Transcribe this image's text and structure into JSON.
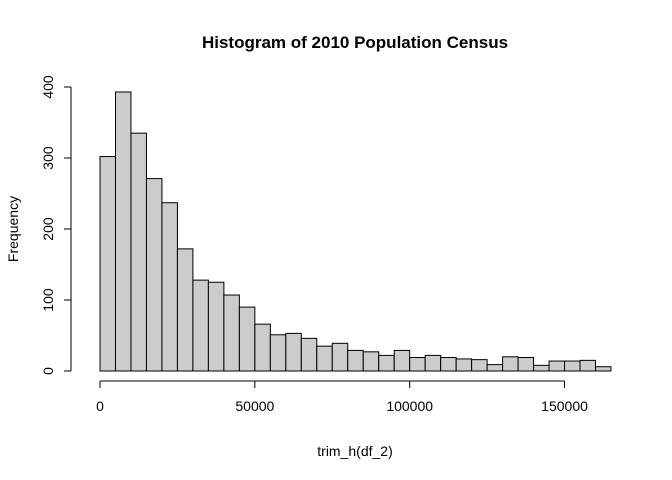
{
  "chart_data": {
    "type": "bar",
    "title": "Histogram of 2010 Population Census",
    "xlabel": "trim_h(df_2)",
    "ylabel": "Frequency",
    "bin_width": 5000,
    "bins": [
      {
        "start": 0,
        "end": 5000,
        "count": 302
      },
      {
        "start": 5000,
        "end": 10000,
        "count": 393
      },
      {
        "start": 10000,
        "end": 15000,
        "count": 335
      },
      {
        "start": 15000,
        "end": 20000,
        "count": 271
      },
      {
        "start": 20000,
        "end": 25000,
        "count": 237
      },
      {
        "start": 25000,
        "end": 30000,
        "count": 172
      },
      {
        "start": 30000,
        "end": 35000,
        "count": 128
      },
      {
        "start": 35000,
        "end": 40000,
        "count": 125
      },
      {
        "start": 40000,
        "end": 45000,
        "count": 107
      },
      {
        "start": 45000,
        "end": 50000,
        "count": 90
      },
      {
        "start": 50000,
        "end": 55000,
        "count": 66
      },
      {
        "start": 55000,
        "end": 60000,
        "count": 51
      },
      {
        "start": 60000,
        "end": 65000,
        "count": 53
      },
      {
        "start": 65000,
        "end": 70000,
        "count": 46
      },
      {
        "start": 70000,
        "end": 75000,
        "count": 35
      },
      {
        "start": 75000,
        "end": 80000,
        "count": 39
      },
      {
        "start": 80000,
        "end": 85000,
        "count": 29
      },
      {
        "start": 85000,
        "end": 90000,
        "count": 27
      },
      {
        "start": 90000,
        "end": 95000,
        "count": 22
      },
      {
        "start": 95000,
        "end": 100000,
        "count": 29
      },
      {
        "start": 100000,
        "end": 105000,
        "count": 19
      },
      {
        "start": 105000,
        "end": 110000,
        "count": 22
      },
      {
        "start": 110000,
        "end": 115000,
        "count": 19
      },
      {
        "start": 115000,
        "end": 120000,
        "count": 17
      },
      {
        "start": 120000,
        "end": 125000,
        "count": 16
      },
      {
        "start": 125000,
        "end": 130000,
        "count": 9
      },
      {
        "start": 130000,
        "end": 135000,
        "count": 20
      },
      {
        "start": 135000,
        "end": 140000,
        "count": 19
      },
      {
        "start": 140000,
        "end": 145000,
        "count": 8
      },
      {
        "start": 145000,
        "end": 150000,
        "count": 14
      },
      {
        "start": 150000,
        "end": 155000,
        "count": 14
      },
      {
        "start": 155000,
        "end": 160000,
        "count": 15
      },
      {
        "start": 160000,
        "end": 165000,
        "count": 6
      }
    ],
    "xlim": [
      0,
      165000
    ],
    "ylim": [
      0,
      400
    ],
    "x_ticks": [
      0,
      50000,
      100000,
      150000
    ],
    "x_tick_labels": [
      "0",
      "50000",
      "100000",
      "150000"
    ],
    "y_ticks": [
      0,
      100,
      200,
      300,
      400
    ],
    "y_tick_labels": [
      "0",
      "100",
      "200",
      "300",
      "400"
    ],
    "grid": false,
    "bar_fill": "#cccccc",
    "bar_stroke": "#000000"
  }
}
